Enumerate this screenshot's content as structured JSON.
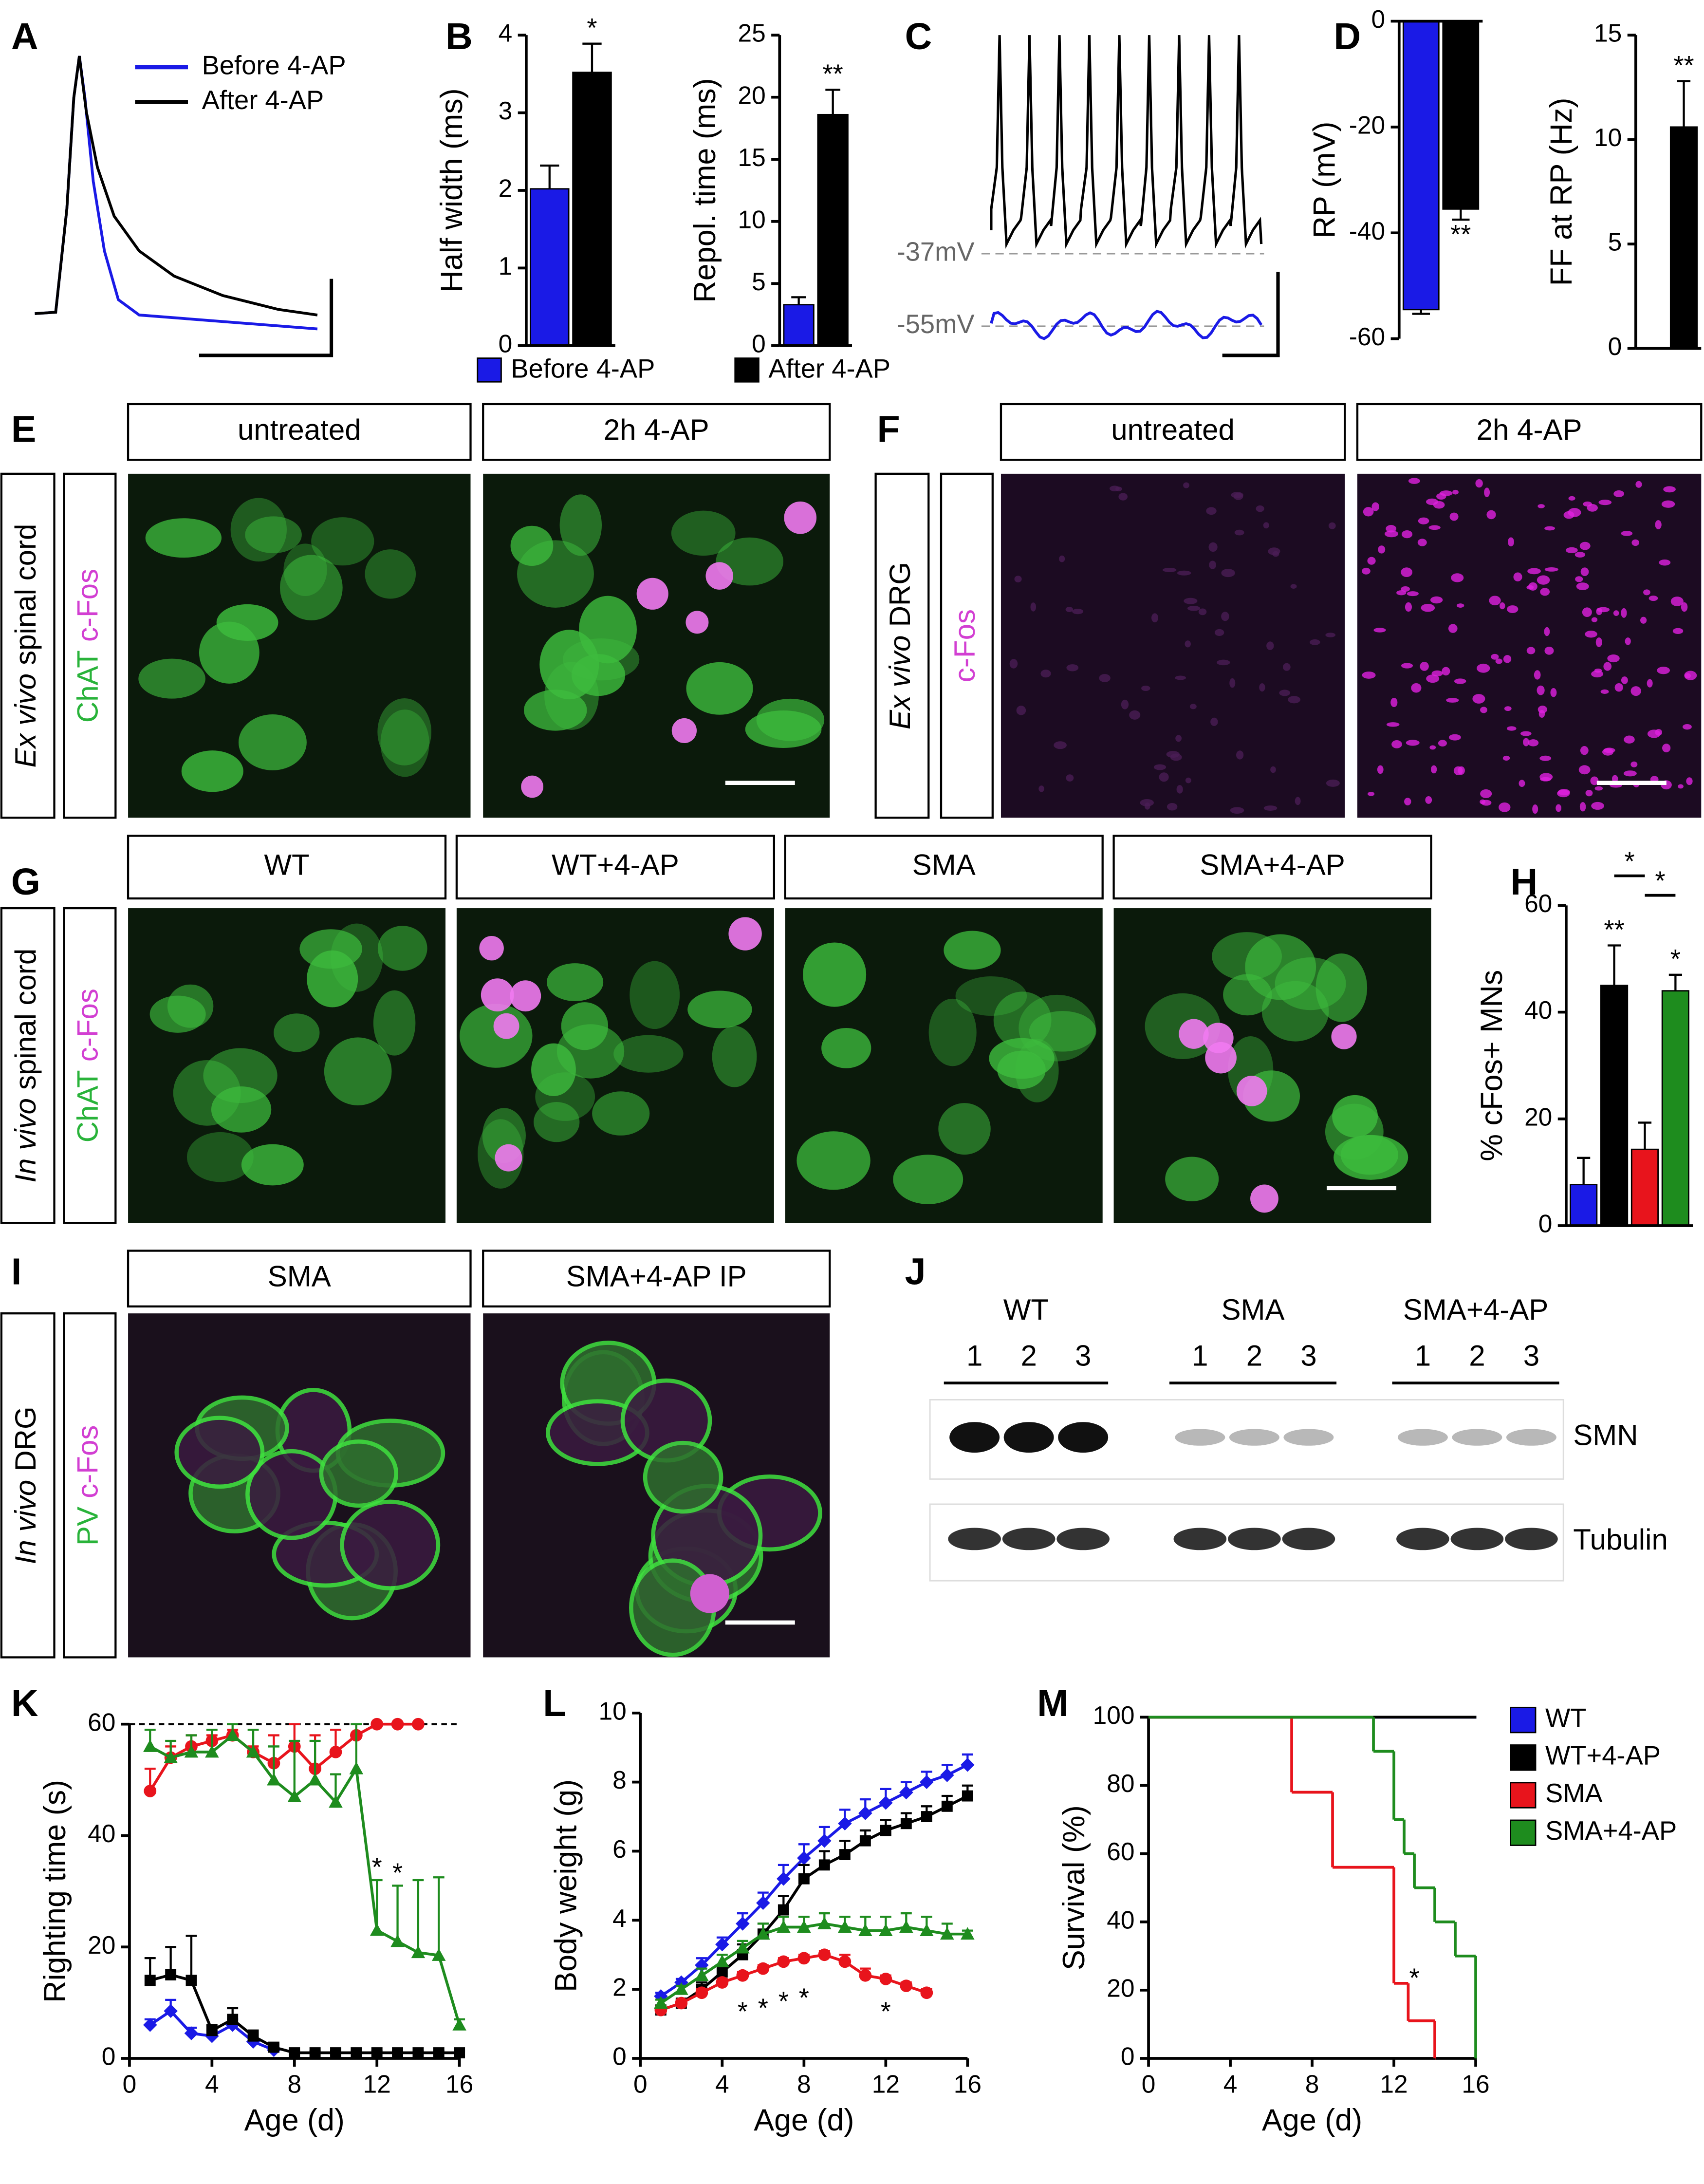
{
  "letters": [
    "A",
    "B",
    "C",
    "D",
    "E",
    "F",
    "G",
    "H",
    "I",
    "J",
    "K",
    "L",
    "M"
  ],
  "panel_a": {
    "labels": [
      "Before 4-AP",
      "After 4-AP"
    ]
  },
  "panel_c": {
    "labels": [
      "-37mV",
      "-55mV"
    ]
  },
  "images": {
    "E": {
      "headers": [
        "untreated",
        "2h 4-AP"
      ],
      "side": [
        "Ex vivo",
        "spinal cord"
      ],
      "stains": [
        "ChAT",
        "c-Fos"
      ],
      "stain_colors": [
        "#29b33a",
        "#d23fd2"
      ]
    },
    "F": {
      "headers": [
        "untreated",
        "2h 4-AP"
      ],
      "side": [
        "Ex vivo",
        "DRG"
      ],
      "stains": [
        "c-Fos"
      ],
      "stain_colors": [
        "#d23fd2"
      ]
    },
    "G": {
      "headers": [
        "WT",
        "WT+4-AP",
        "SMA",
        "SMA+4-AP"
      ],
      "side": [
        "In vivo",
        "spinal cord"
      ],
      "stains": [
        "ChAT",
        "c-Fos"
      ],
      "stain_colors": [
        "#29b33a",
        "#d23fd2"
      ]
    },
    "I": {
      "headers": [
        "SMA",
        "SMA+4-AP IP"
      ],
      "side": [
        "In vivo",
        "DRG"
      ],
      "stains": [
        "PV",
        "c-Fos"
      ],
      "stain_colors": [
        "#29b33a",
        "#d23fd2"
      ]
    }
  },
  "blot": {
    "groups": [
      "WT",
      "SMA",
      "SMA+4-AP"
    ],
    "lanes": [
      [
        "1",
        "2",
        "3"
      ],
      [
        "1",
        "2",
        "3"
      ],
      [
        "1",
        "2",
        "3"
      ]
    ],
    "rows": [
      "SMN",
      "Tubulin"
    ]
  },
  "chart_data": [
    {
      "type": "bar",
      "ylabel": "Half width  (ms)",
      "ylim": [
        0,
        4
      ],
      "yticks": [
        0,
        1,
        2,
        3,
        4
      ],
      "legend": true,
      "series": [
        {
          "name": "Before 4-AP",
          "color": "#1a1ae6",
          "values": [
            2.02
          ],
          "errors": [
            0.3
          ]
        },
        {
          "name": "After 4-AP",
          "color": "#000000",
          "values": [
            3.52
          ],
          "errors": [
            0.37
          ]
        }
      ],
      "annotations": [
        {
          "text": "*",
          "series": 1
        }
      ]
    },
    {
      "type": "bar",
      "ylabel": "Repol. time (ms)",
      "ylim": [
        0,
        25
      ],
      "yticks": [
        0,
        5,
        10,
        15,
        20,
        25
      ],
      "series": [
        {
          "color": "#1a1ae6",
          "values": [
            3.3
          ],
          "errors": [
            0.6
          ]
        },
        {
          "color": "#000000",
          "values": [
            18.6
          ],
          "errors": [
            2.0
          ]
        }
      ],
      "annotations": [
        {
          "text": "**",
          "series": 1
        }
      ]
    },
    {
      "type": "bar",
      "ylabel": "RP (mV)",
      "ylim": [
        -60,
        0
      ],
      "yticks": [
        0,
        -20,
        -40,
        -60
      ],
      "series": [
        {
          "color": "#1a1ae6",
          "values": [
            -54.5
          ],
          "errors": [
            0.8
          ]
        },
        {
          "color": "#000000",
          "values": [
            -35.5
          ],
          "errors": [
            2.0
          ]
        }
      ],
      "annotations": [
        {
          "text": "**",
          "series": 1
        }
      ]
    },
    {
      "type": "bar",
      "ylabel": "FF at RP (Hz)",
      "ylim": [
        0,
        15
      ],
      "yticks": [
        0,
        5,
        10,
        15
      ],
      "series": [
        {
          "color": "#1a1ae6",
          "values": [
            0
          ],
          "errors": [
            0
          ]
        },
        {
          "color": "#000000",
          "values": [
            10.6
          ],
          "errors": [
            2.2
          ]
        }
      ],
      "annotations": [
        {
          "text": "**",
          "series": 1
        }
      ]
    },
    {
      "type": "bar",
      "ylabel": "% cFos+ MNs",
      "ylim": [
        0,
        60
      ],
      "yticks": [
        0,
        20,
        40,
        60
      ],
      "series": [
        {
          "color": "#1a1ae6",
          "values": [
            7.7
          ],
          "errors": [
            5
          ]
        },
        {
          "color": "#000000",
          "values": [
            45
          ],
          "errors": [
            7.5
          ]
        },
        {
          "color": "#e8141c",
          "values": [
            14.3
          ],
          "errors": [
            5
          ]
        },
        {
          "color": "#1e8c1e",
          "values": [
            44
          ],
          "errors": [
            3
          ]
        }
      ],
      "annotations": [
        {
          "text": "**",
          "series": 1
        },
        {
          "text": "*",
          "series": 3
        },
        {
          "text": "*",
          "from": 1,
          "to": 2
        },
        {
          "text": "*",
          "from": 2,
          "to": 3
        }
      ]
    },
    {
      "type": "line",
      "ylabel": "Righting time (s)",
      "xlabel": "Age (d)",
      "x": [
        1,
        2,
        3,
        4,
        5,
        6,
        7,
        8,
        9,
        10,
        11,
        12,
        13,
        14,
        15,
        16
      ],
      "xlim": [
        0,
        16
      ],
      "xticks": [
        0,
        4,
        8,
        12,
        16
      ],
      "ylim": [
        0,
        60
      ],
      "yticks": [
        0,
        20,
        40,
        60
      ],
      "hline": 60,
      "series": [
        {
          "color": "#1a1ae6",
          "marker": "diamond",
          "values": [
            6,
            8.5,
            4.5,
            4,
            6,
            3,
            1.5,
            null,
            null,
            null,
            null,
            null,
            null,
            null,
            null,
            null
          ],
          "errors": [
            1,
            2,
            1,
            1,
            1,
            1,
            0.5,
            null,
            null,
            null,
            null,
            null,
            null,
            null,
            null,
            null
          ]
        },
        {
          "color": "#000000",
          "marker": "square",
          "values": [
            14,
            15,
            14,
            5,
            7,
            4,
            2,
            1,
            1,
            1,
            1,
            1,
            1,
            1,
            1,
            1
          ],
          "errors": [
            4,
            5,
            8,
            1,
            2,
            1,
            0.5,
            0.3,
            0.3,
            0.3,
            0.3,
            0.3,
            0.3,
            0.3,
            0.3,
            0.3
          ]
        },
        {
          "color": "#e8141c",
          "marker": "circle",
          "values": [
            48,
            54,
            56,
            57,
            58,
            55,
            53,
            56,
            52,
            55,
            58,
            60,
            60,
            60,
            null,
            null
          ],
          "errors": [
            4,
            2,
            2,
            1,
            1,
            1,
            5,
            4,
            6,
            4,
            2,
            0,
            0,
            0,
            null,
            null
          ]
        },
        {
          "color": "#1e8c1e",
          "marker": "triangle",
          "values": [
            56,
            54,
            55,
            55,
            58,
            55,
            50,
            47,
            50,
            46,
            52,
            23,
            21,
            19,
            18.5,
            6
          ],
          "errors": [
            3,
            3,
            3,
            4,
            2,
            4,
            6,
            10,
            7,
            5,
            8,
            9,
            10,
            13,
            14,
            1
          ]
        }
      ],
      "annotations": [
        {
          "text": "*",
          "x": 12,
          "y": 34
        },
        {
          "text": "*",
          "x": 13,
          "y": 33
        }
      ]
    },
    {
      "type": "line",
      "ylabel": "Body weight (g)",
      "xlabel": "Age (d)",
      "x": [
        1,
        2,
        3,
        4,
        5,
        6,
        7,
        8,
        9,
        10,
        11,
        12,
        13,
        14,
        15,
        16
      ],
      "xlim": [
        0,
        16
      ],
      "xticks": [
        0,
        4,
        8,
        12,
        16
      ],
      "ylim": [
        0,
        10
      ],
      "yticks": [
        0,
        2,
        4,
        6,
        8,
        10
      ],
      "series": [
        {
          "color": "#1a1ae6",
          "marker": "diamond",
          "values": [
            1.8,
            2.2,
            2.7,
            3.3,
            3.9,
            4.5,
            5.2,
            5.8,
            6.3,
            6.8,
            7.1,
            7.4,
            7.7,
            8.0,
            8.2,
            8.5
          ],
          "errors": [
            0.1,
            0.1,
            0.2,
            0.2,
            0.3,
            0.3,
            0.4,
            0.4,
            0.4,
            0.4,
            0.4,
            0.4,
            0.3,
            0.3,
            0.3,
            0.3
          ]
        },
        {
          "color": "#000000",
          "marker": "square",
          "values": [
            1.4,
            1.6,
            2.0,
            2.5,
            3.0,
            3.6,
            4.3,
            5.2,
            5.6,
            5.9,
            6.3,
            6.6,
            6.8,
            7.0,
            7.3,
            7.6
          ],
          "errors": [
            0.1,
            0.1,
            0.2,
            0.2,
            0.3,
            0.3,
            0.4,
            0.4,
            0.4,
            0.4,
            0.3,
            0.3,
            0.3,
            0.3,
            0.3,
            0.3
          ]
        },
        {
          "color": "#e8141c",
          "marker": "circle",
          "values": [
            1.4,
            1.6,
            1.9,
            2.2,
            2.4,
            2.6,
            2.8,
            2.9,
            3.0,
            2.8,
            2.4,
            2.3,
            2.1,
            1.9,
            null,
            null
          ],
          "errors": [
            0.1,
            0.1,
            0.1,
            0.1,
            0.1,
            0.1,
            0.1,
            0.1,
            0.1,
            0.2,
            0.2,
            0.1,
            0.1,
            0.1,
            null,
            null
          ]
        },
        {
          "color": "#1e8c1e",
          "marker": "triangle",
          "values": [
            1.6,
            2.0,
            2.4,
            2.8,
            3.2,
            3.6,
            3.8,
            3.8,
            3.9,
            3.8,
            3.7,
            3.7,
            3.8,
            3.7,
            3.6,
            3.6
          ],
          "errors": [
            0.1,
            0.1,
            0.2,
            0.2,
            0.2,
            0.3,
            0.3,
            0.3,
            0.3,
            0.3,
            0.4,
            0.4,
            0.4,
            0.4,
            0.3,
            0.1
          ]
        }
      ],
      "annotations": [
        {
          "text": "*",
          "x": 5,
          "y": 1.3
        },
        {
          "text": "*",
          "x": 6,
          "y": 1.4
        },
        {
          "text": "*",
          "x": 7,
          "y": 1.6
        },
        {
          "text": "*",
          "x": 8,
          "y": 1.7
        },
        {
          "text": "*",
          "x": 12,
          "y": 1.3
        }
      ]
    },
    {
      "type": "step",
      "ylabel": "Survival (%)",
      "xlabel": "Age (d)",
      "xlim": [
        0,
        16
      ],
      "xticks": [
        0,
        4,
        8,
        12,
        16
      ],
      "ylim": [
        0,
        100
      ],
      "yticks": [
        0,
        20,
        40,
        60,
        80,
        100
      ],
      "legend": true,
      "series": [
        {
          "name": "WT",
          "color": "#1a1ae6",
          "x": [
            0,
            16
          ],
          "values": [
            100,
            100
          ]
        },
        {
          "name": "WT+4-AP",
          "color": "#000000",
          "x": [
            0,
            16
          ],
          "values": [
            100,
            100
          ]
        },
        {
          "name": "SMA",
          "color": "#e8141c",
          "x": [
            0,
            7,
            9,
            12,
            12.7,
            14
          ],
          "values": [
            100,
            78,
            56,
            22,
            11,
            0
          ]
        },
        {
          "name": "SMA+4-AP",
          "color": "#1e8c1e",
          "x": [
            0,
            11,
            12,
            12.5,
            13,
            14,
            15,
            16
          ],
          "values": [
            100,
            90,
            70,
            60,
            50,
            40,
            30,
            0
          ]
        }
      ],
      "annotations": [
        {
          "text": "*",
          "x": 13,
          "y": 23
        }
      ]
    }
  ]
}
